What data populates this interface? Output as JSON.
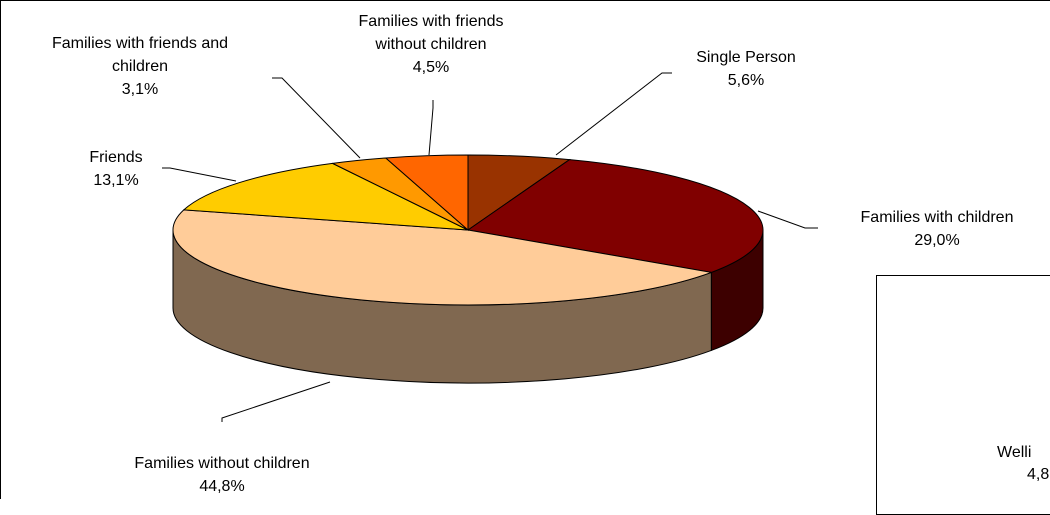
{
  "chart_data": {
    "type": "pie",
    "three_d": true,
    "title": "",
    "slices": [
      {
        "label": "Single Person",
        "value": 5.6,
        "value_text": "5,6%",
        "color": "#993300",
        "side_color": "#5a1d00"
      },
      {
        "label": "Families with children",
        "value": 29.0,
        "value_text": "29,0%",
        "color": "#800000",
        "side_color": "#3d0000"
      },
      {
        "label": "Families without children",
        "value": 44.8,
        "value_text": "44,8%",
        "color": "#FFCC99",
        "side_color": "#806850"
      },
      {
        "label": "Friends",
        "value": 13.1,
        "value_text": "13,1%",
        "color": "#FFCC00",
        "side_color": "#806600"
      },
      {
        "label": "Families with friends and children",
        "value": 3.1,
        "value_text": "3,1%",
        "color": "#FF9900",
        "side_color": "#804d00"
      },
      {
        "label": "Families with friends without children",
        "value": 4.5,
        "value_text": "4,5%",
        "color": "#FF6600",
        "side_color": "#803300"
      }
    ],
    "grid": false,
    "legend": "none"
  },
  "overlap_panel": {
    "partial_label": "Welli",
    "partial_value": "4,8"
  }
}
